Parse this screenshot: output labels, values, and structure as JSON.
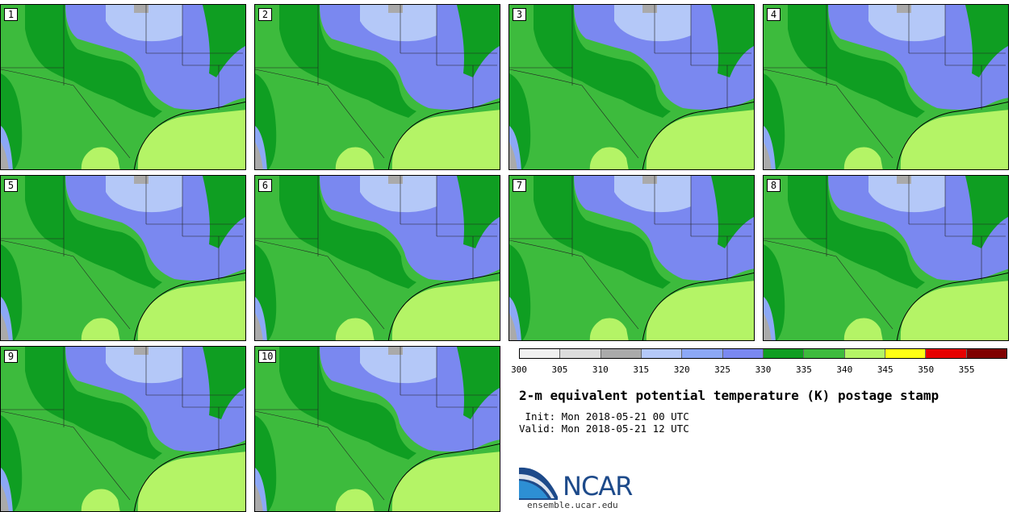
{
  "panels": [
    "1",
    "2",
    "3",
    "4",
    "5",
    "6",
    "7",
    "8",
    "9",
    "10"
  ],
  "colorbar": {
    "colors": [
      "#f0f0f0",
      "#dcdcdc",
      "#aaaaaa",
      "#b4c8f8",
      "#8ca8f5",
      "#7a88f0",
      "#0f9e22",
      "#3dbb3d",
      "#b4f466",
      "#ffff14",
      "#e60000",
      "#800000"
    ],
    "ticks": [
      "300",
      "305",
      "310",
      "315",
      "320",
      "325",
      "330",
      "335",
      "340",
      "345",
      "350",
      "355"
    ]
  },
  "title": "2-m equivalent potential temperature (K) postage stamp",
  "init": " Init: Mon 2018-05-21 00 UTC",
  "valid": "Valid: Mon 2018-05-21 12 UTC",
  "logo": {
    "text": "NCAR",
    "url": "ensemble.ucar.edu"
  }
}
